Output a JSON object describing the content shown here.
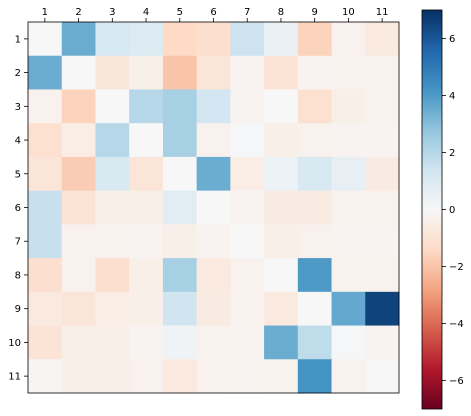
{
  "chart_data": {
    "type": "heatmap",
    "title": "",
    "xlabel": "",
    "ylabel": "",
    "x_categories": [
      "1",
      "2",
      "3",
      "4",
      "5",
      "6",
      "7",
      "8",
      "9",
      "10",
      "11"
    ],
    "y_categories": [
      "1",
      "2",
      "3",
      "4",
      "5",
      "6",
      "7",
      "8",
      "9",
      "10",
      "11"
    ],
    "values": [
      [
        0.0,
        3.5,
        1.2,
        1.0,
        -1.4,
        -1.2,
        1.5,
        0.5,
        -1.6,
        -0.3,
        -0.7
      ],
      [
        3.5,
        0.0,
        -0.8,
        -0.4,
        -2.0,
        -0.9,
        -0.2,
        -1.0,
        -0.2,
        -0.3,
        -0.3
      ],
      [
        -0.3,
        -1.6,
        0.0,
        2.0,
        2.3,
        1.3,
        -0.2,
        0.0,
        -1.1,
        -0.4,
        -0.3
      ],
      [
        -1.1,
        -0.5,
        2.0,
        0.0,
        2.3,
        -0.3,
        0.1,
        -0.4,
        -0.3,
        -0.2,
        -0.2
      ],
      [
        -0.9,
        -1.8,
        1.1,
        -0.9,
        0.0,
        3.5,
        -0.5,
        0.4,
        1.1,
        0.6,
        -0.6
      ],
      [
        1.6,
        -1.0,
        -0.4,
        -0.4,
        0.8,
        0.0,
        -0.2,
        -0.6,
        -0.6,
        -0.3,
        -0.3
      ],
      [
        1.6,
        -0.3,
        -0.3,
        -0.2,
        -0.4,
        -0.2,
        0.0,
        -0.4,
        -0.3,
        -0.2,
        -0.2
      ],
      [
        -1.2,
        -0.3,
        -1.2,
        -0.4,
        2.3,
        -0.7,
        -0.3,
        0.0,
        4.0,
        -0.3,
        -0.3
      ],
      [
        -0.7,
        -0.9,
        -0.5,
        -0.4,
        1.4,
        -0.6,
        -0.3,
        -0.7,
        0.0,
        3.6,
        6.5
      ],
      [
        -1.0,
        -0.4,
        -0.4,
        -0.2,
        0.3,
        -0.3,
        -0.2,
        3.5,
        1.8,
        0.1,
        -0.2
      ],
      [
        -0.1,
        -0.4,
        -0.4,
        -0.3,
        -0.7,
        -0.3,
        -0.2,
        -0.3,
        4.2,
        -0.3,
        0.0
      ]
    ],
    "colormap": "RdBu",
    "vmin": -7,
    "vmax": 7,
    "colorbar_ticks": [
      -6,
      -4,
      -2,
      0,
      2,
      4,
      6
    ],
    "colorbar_tick_labels": [
      "−6",
      "−4",
      "−2",
      "0",
      "2",
      "4",
      "6"
    ],
    "colorbar_stops": [
      "#67001f",
      "#b2182b",
      "#d6604d",
      "#f4a582",
      "#fddbc7",
      "#f7f7f7",
      "#d1e5f0",
      "#92c5de",
      "#4393c3",
      "#2166ac",
      "#053061"
    ],
    "grid": false
  }
}
